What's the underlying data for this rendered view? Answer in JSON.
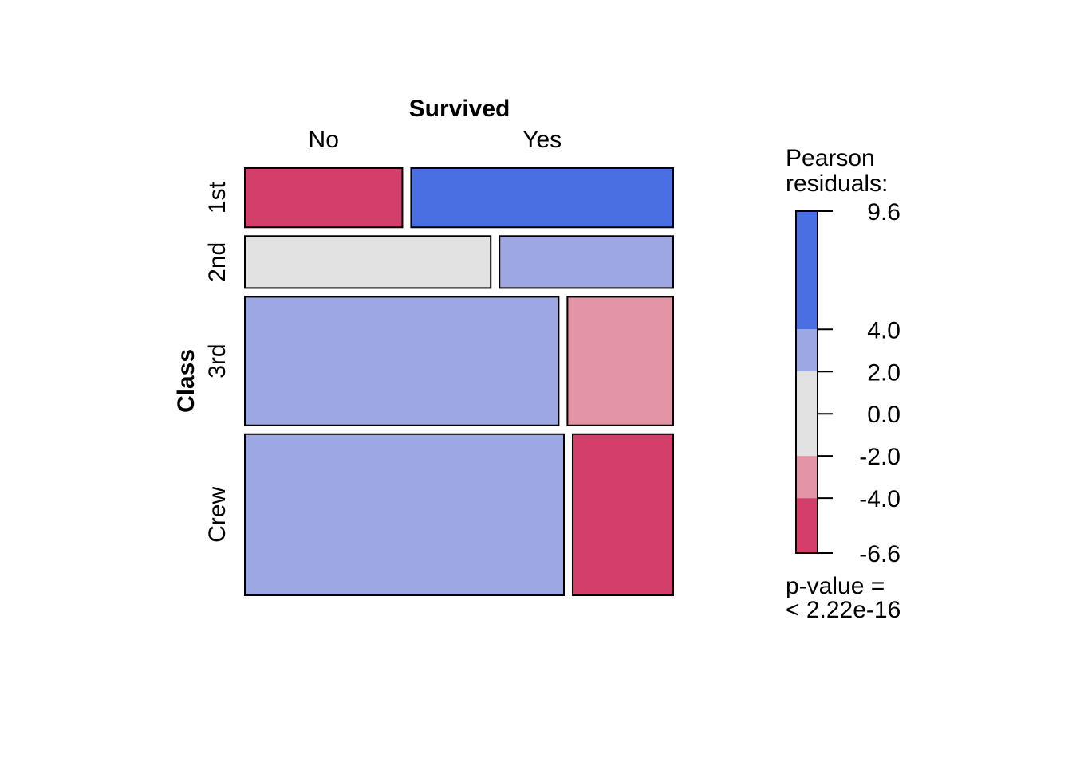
{
  "chart_data": {
    "type": "mosaic",
    "col_variable": "Survived",
    "row_variable": "Class",
    "col_levels": [
      "No",
      "Yes"
    ],
    "row_levels": [
      "1st",
      "2nd",
      "3rd",
      "Crew"
    ],
    "counts": [
      [
        122,
        203
      ],
      [
        167,
        118
      ],
      [
        528,
        178
      ],
      [
        673,
        212
      ]
    ],
    "legend": {
      "title_line1": "Pearson",
      "title_line2": "residuals:",
      "ticks": [
        9.6,
        4.0,
        2.0,
        0.0,
        -2.0,
        -4.0,
        -6.6
      ],
      "tick_labels": [
        "9.6",
        "4.0",
        "2.0",
        "0.0",
        "-2.0",
        "-4.0",
        "-6.6"
      ],
      "range": [
        -6.6,
        9.6
      ],
      "bands": [
        {
          "from": 4.0,
          "to": 9.6,
          "color": "#4A6FE3"
        },
        {
          "from": 2.0,
          "to": 4.0,
          "color": "#9DA8E2"
        },
        {
          "from": -2.0,
          "to": 2.0,
          "color": "#E2E2E2"
        },
        {
          "from": -4.0,
          "to": -2.0,
          "color": "#E495A5"
        },
        {
          "from": -6.6,
          "to": -4.0,
          "color": "#D33F6A"
        }
      ],
      "pvalue_line1": "p-value =",
      "pvalue_line2": "< 2.22e-16"
    }
  }
}
